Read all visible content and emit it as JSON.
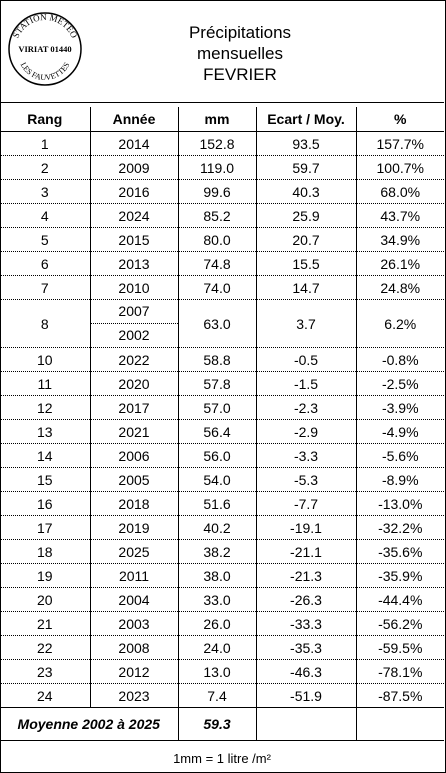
{
  "title_lines": [
    "Précipitations",
    "mensuelles",
    "FEVRIER"
  ],
  "stamp": {
    "top": "STATION METEO",
    "middle": "VIRIAT 01440",
    "bottom": "LES FAUVETTES"
  },
  "columns": [
    "Rang",
    "Année",
    "mm",
    "Ecart / Moy.",
    "%"
  ],
  "rows": [
    {
      "rank": "1",
      "year": "2014",
      "mm": "152.8",
      "ecart": "93.5",
      "pct": "157.7%"
    },
    {
      "rank": "2",
      "year": "2009",
      "mm": "119.0",
      "ecart": "59.7",
      "pct": "100.7%"
    },
    {
      "rank": "3",
      "year": "2016",
      "mm": "99.6",
      "ecart": "40.3",
      "pct": "68.0%"
    },
    {
      "rank": "4",
      "year": "2024",
      "mm": "85.2",
      "ecart": "25.9",
      "pct": "43.7%"
    },
    {
      "rank": "5",
      "year": "2015",
      "mm": "80.0",
      "ecart": "20.7",
      "pct": "34.9%"
    },
    {
      "rank": "6",
      "year": "2013",
      "mm": "74.8",
      "ecart": "15.5",
      "pct": "26.1%"
    },
    {
      "rank": "7",
      "year": "2010",
      "mm": "74.0",
      "ecart": "14.7",
      "pct": "24.8%"
    },
    {
      "rank": "8",
      "years": [
        "2007",
        "2002"
      ],
      "mm": "63.0",
      "ecart": "3.7",
      "pct": "6.2%"
    },
    {
      "rank": "10",
      "year": "2022",
      "mm": "58.8",
      "ecart": "-0.5",
      "pct": "-0.8%"
    },
    {
      "rank": "11",
      "year": "2020",
      "mm": "57.8",
      "ecart": "-1.5",
      "pct": "-2.5%"
    },
    {
      "rank": "12",
      "year": "2017",
      "mm": "57.0",
      "ecart": "-2.3",
      "pct": "-3.9%"
    },
    {
      "rank": "13",
      "year": "2021",
      "mm": "56.4",
      "ecart": "-2.9",
      "pct": "-4.9%"
    },
    {
      "rank": "14",
      "year": "2006",
      "mm": "56.0",
      "ecart": "-3.3",
      "pct": "-5.6%"
    },
    {
      "rank": "15",
      "year": "2005",
      "mm": "54.0",
      "ecart": "-5.3",
      "pct": "-8.9%"
    },
    {
      "rank": "16",
      "year": "2018",
      "mm": "51.6",
      "ecart": "-7.7",
      "pct": "-13.0%"
    },
    {
      "rank": "17",
      "year": "2019",
      "mm": "40.2",
      "ecart": "-19.1",
      "pct": "-32.2%"
    },
    {
      "rank": "18",
      "year": "2025",
      "mm": "38.2",
      "ecart": "-21.1",
      "pct": "-35.6%"
    },
    {
      "rank": "19",
      "year": "2011",
      "mm": "38.0",
      "ecart": "-21.3",
      "pct": "-35.9%"
    },
    {
      "rank": "20",
      "year": "2004",
      "mm": "33.0",
      "ecart": "-26.3",
      "pct": "-44.4%"
    },
    {
      "rank": "21",
      "year": "2003",
      "mm": "26.0",
      "ecart": "-33.3",
      "pct": "-56.2%"
    },
    {
      "rank": "22",
      "year": "2008",
      "mm": "24.0",
      "ecart": "-35.3",
      "pct": "-59.5%"
    },
    {
      "rank": "23",
      "year": "2012",
      "mm": "13.0",
      "ecart": "-46.3",
      "pct": "-78.1%"
    },
    {
      "rank": "24",
      "year": "2023",
      "mm": "7.4",
      "ecart": "-51.9",
      "pct": "-87.5%"
    }
  ],
  "average": {
    "label": "Moyenne 2002 à 2025",
    "value": "59.3"
  },
  "footer": "1mm = 1 litre /m²"
}
